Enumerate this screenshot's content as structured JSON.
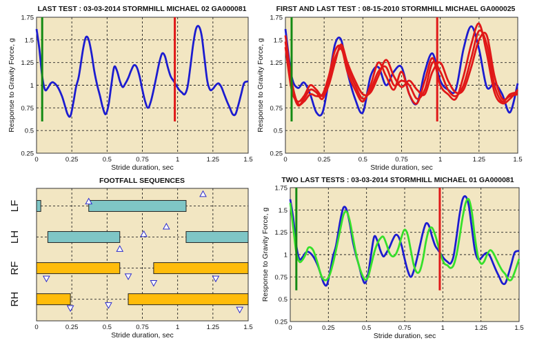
{
  "colors": {
    "panel_bg": "#f2e6c2",
    "blue": "#1c1cd0",
    "red": "#e01818",
    "green_marker": "#138a13",
    "bright_green": "#36e02a",
    "teal_bar": "#7fc6c6",
    "orange_bar": "#ffbc0a",
    "triangle": "#2a2acc"
  },
  "chart_data": [
    {
      "type": "line",
      "title": "LAST TEST : 03-03-2014 STORMHILL MICHAEL 02 GA000081",
      "xlabel": "Stride duration, sec",
      "ylabel": "Response to Gravity Force, g",
      "xlim": [
        0,
        1.5
      ],
      "ylim": [
        0.25,
        1.75
      ],
      "x_ticks": [
        "0",
        "0.25",
        "0.5",
        "0.75",
        "1",
        "1.25",
        "1.5"
      ],
      "y_ticks": [
        "0.25",
        "0.5",
        "0.75",
        "1",
        "1.25",
        "1.5",
        "1.75"
      ],
      "grid": true,
      "markers": [
        {
          "x": 0.04,
          "y_range": [
            0.6,
            1.75
          ],
          "color": "green"
        },
        {
          "x": 0.98,
          "y_range": [
            0.6,
            1.75
          ],
          "color": "red"
        }
      ],
      "series": [
        {
          "color": "blue",
          "x": [
            0,
            0.02,
            0.04,
            0.06,
            0.08,
            0.1,
            0.12,
            0.15,
            0.18,
            0.2,
            0.22,
            0.24,
            0.26,
            0.28,
            0.3,
            0.33,
            0.35,
            0.37,
            0.39,
            0.41,
            0.43,
            0.45,
            0.47,
            0.49,
            0.51,
            0.53,
            0.55,
            0.57,
            0.59,
            0.61,
            0.63,
            0.65,
            0.67,
            0.69,
            0.71,
            0.73,
            0.75,
            0.77,
            0.79,
            0.81,
            0.83,
            0.85,
            0.87,
            0.89,
            0.91,
            0.93,
            0.95,
            0.97,
            0.99,
            1.01,
            1.03,
            1.05,
            1.07,
            1.09,
            1.11,
            1.13,
            1.15,
            1.17,
            1.19,
            1.21,
            1.23,
            1.25,
            1.27,
            1.29,
            1.31,
            1.33,
            1.35,
            1.37,
            1.39,
            1.41,
            1.43,
            1.45,
            1.47,
            1.49,
            1.5
          ],
          "y": [
            1.62,
            1.4,
            1.1,
            0.95,
            0.97,
            1.02,
            1.03,
            0.98,
            0.88,
            0.78,
            0.68,
            0.66,
            0.8,
            0.98,
            1.1,
            1.4,
            1.53,
            1.5,
            1.35,
            1.15,
            1.0,
            0.88,
            0.75,
            0.68,
            0.78,
            1.0,
            1.2,
            1.16,
            1.05,
            0.98,
            1.02,
            1.08,
            1.16,
            1.22,
            1.2,
            1.1,
            0.95,
            0.82,
            0.75,
            0.82,
            0.95,
            1.1,
            1.25,
            1.35,
            1.32,
            1.2,
            1.1,
            1.05,
            1.0,
            0.95,
            0.92,
            0.9,
            0.98,
            1.2,
            1.45,
            1.62,
            1.65,
            1.55,
            1.3,
            1.05,
            0.95,
            0.96,
            1.0,
            1.02,
            0.98,
            0.9,
            0.82,
            0.75,
            0.68,
            0.68,
            0.78,
            0.9,
            1.02,
            1.04,
            1.04
          ]
        }
      ]
    },
    {
      "type": "line",
      "title": "FIRST AND LAST TEST : 08-15-2010 STORMHILL MICHAEL GA000025",
      "xlabel": "Stride duration, sec",
      "ylabel": "Response to Gravity Force, g",
      "xlim": [
        0,
        1.5
      ],
      "ylim": [
        0.25,
        1.75
      ],
      "x_ticks": [
        "0",
        "0.25",
        "0.5",
        "0.75",
        "1",
        "1.25",
        "1.5"
      ],
      "y_ticks": [
        "0.25",
        "0.5",
        "0.75",
        "1",
        "1.25",
        "1.5",
        "1.75"
      ],
      "grid": true,
      "markers": [
        {
          "x": 0.04,
          "y_range": [
            0.6,
            1.75
          ],
          "color": "green"
        },
        {
          "x": 0.98,
          "y_range": [
            0.6,
            1.75
          ],
          "color": "red"
        }
      ],
      "series": [
        {
          "color": "blue",
          "x": [
            0,
            0.04,
            0.08,
            0.12,
            0.16,
            0.2,
            0.24,
            0.28,
            0.32,
            0.36,
            0.4,
            0.45,
            0.5,
            0.55,
            0.6,
            0.65,
            0.7,
            0.75,
            0.8,
            0.85,
            0.9,
            0.95,
            1.0,
            1.05,
            1.1,
            1.15,
            1.2,
            1.25,
            1.3,
            1.35,
            1.4,
            1.45,
            1.5
          ],
          "y": [
            1.62,
            1.1,
            0.97,
            1.03,
            0.9,
            0.7,
            0.7,
            1.05,
            1.45,
            1.5,
            1.15,
            0.85,
            0.7,
            1.1,
            1.2,
            1.0,
            1.15,
            1.2,
            0.9,
            0.8,
            1.15,
            1.35,
            1.05,
            0.95,
            0.95,
            1.4,
            1.65,
            1.4,
            0.98,
            1.02,
            0.9,
            0.7,
            1.02
          ]
        },
        {
          "color": "red",
          "x": [
            0,
            0.04,
            0.08,
            0.12,
            0.16,
            0.2,
            0.24,
            0.28,
            0.32,
            0.36,
            0.4,
            0.45,
            0.5,
            0.55,
            0.6,
            0.65,
            0.7,
            0.75,
            0.8,
            0.85,
            0.9,
            0.95,
            1.0,
            1.05,
            1.1,
            1.15,
            1.2,
            1.25,
            1.3,
            1.35,
            1.4,
            1.45,
            1.5
          ],
          "y": [
            1.55,
            1.05,
            0.8,
            0.82,
            0.9,
            0.88,
            0.9,
            1.1,
            1.38,
            1.42,
            1.15,
            0.95,
            0.82,
            1.0,
            1.25,
            1.1,
            0.95,
            1.15,
            0.9,
            0.8,
            1.05,
            1.3,
            1.0,
            0.9,
            0.85,
            1.1,
            1.45,
            1.68,
            1.35,
            0.92,
            0.8,
            0.85,
            0.95
          ]
        },
        {
          "color": "red",
          "x": [
            0,
            0.04,
            0.08,
            0.12,
            0.16,
            0.2,
            0.24,
            0.28,
            0.32,
            0.36,
            0.4,
            0.45,
            0.5,
            0.55,
            0.6,
            0.65,
            0.7,
            0.75,
            0.8,
            0.85,
            0.9,
            0.95,
            1.0,
            1.05,
            1.1,
            1.15,
            1.2,
            1.25,
            1.3,
            1.35,
            1.4,
            1.45,
            1.5
          ],
          "y": [
            1.48,
            1.0,
            0.78,
            0.85,
            0.95,
            0.92,
            0.85,
            1.05,
            1.3,
            1.4,
            1.2,
            1.0,
            0.85,
            0.95,
            1.15,
            1.2,
            1.0,
            1.05,
            1.0,
            0.85,
            0.95,
            1.25,
            1.15,
            0.95,
            0.88,
            1.0,
            1.3,
            1.6,
            1.45,
            1.0,
            0.82,
            0.9,
            0.92
          ]
        },
        {
          "color": "red",
          "x": [
            0,
            0.04,
            0.08,
            0.12,
            0.16,
            0.2,
            0.24,
            0.28,
            0.32,
            0.36,
            0.4,
            0.45,
            0.5,
            0.55,
            0.6,
            0.65,
            0.7,
            0.75,
            0.8,
            0.85,
            0.9,
            0.95,
            1.0,
            1.05,
            1.1,
            1.15,
            1.2,
            1.25,
            1.3,
            1.35,
            1.4,
            1.45,
            1.5
          ],
          "y": [
            1.42,
            0.95,
            0.82,
            0.88,
            1.0,
            0.95,
            0.88,
            1.0,
            1.25,
            1.45,
            1.25,
            1.05,
            0.9,
            0.92,
            1.1,
            1.28,
            1.1,
            0.98,
            1.05,
            0.95,
            0.9,
            1.15,
            1.25,
            1.05,
            0.92,
            0.95,
            1.2,
            1.5,
            1.55,
            1.1,
            0.85,
            0.88,
            0.9
          ]
        }
      ]
    },
    {
      "type": "gantt",
      "title": "FOOTFALL SEQUENCES",
      "xlabel": "Stride duration, sec",
      "xlim": [
        0,
        1.5
      ],
      "x_ticks": [
        "0",
        "0.25",
        "0.5",
        "0.75",
        "1",
        "1.25",
        "1.5"
      ],
      "lanes": [
        "LF",
        "LH",
        "RF",
        "RH"
      ],
      "grid": true,
      "bars": [
        {
          "lane": 0,
          "start": 0.0,
          "end": 0.03,
          "color": "teal"
        },
        {
          "lane": 0,
          "start": 0.37,
          "end": 1.06,
          "color": "teal"
        },
        {
          "lane": 1,
          "start": 0.08,
          "end": 0.59,
          "color": "teal"
        },
        {
          "lane": 1,
          "start": 1.06,
          "end": 1.5,
          "color": "teal"
        },
        {
          "lane": 2,
          "start": 0.0,
          "end": 0.59,
          "color": "orange"
        },
        {
          "lane": 2,
          "start": 0.83,
          "end": 1.5,
          "color": "orange"
        },
        {
          "lane": 3,
          "start": 0.0,
          "end": 0.24,
          "color": "orange"
        },
        {
          "lane": 3,
          "start": 0.65,
          "end": 1.5,
          "color": "orange"
        }
      ],
      "triangles": [
        {
          "x": 0.37,
          "lane": 0,
          "offset": -0.3,
          "dir": "up"
        },
        {
          "x": 1.18,
          "lane": 0,
          "offset": -0.8,
          "dir": "up"
        },
        {
          "x": 0.59,
          "lane": 1,
          "offset": 0.8,
          "dir": "up"
        },
        {
          "x": 0.76,
          "lane": 1,
          "offset": -0.2,
          "dir": "up"
        },
        {
          "x": 0.92,
          "lane": 1,
          "offset": -0.7,
          "dir": "up"
        },
        {
          "x": 0.07,
          "lane": 2,
          "offset": 0.7,
          "dir": "down"
        },
        {
          "x": 0.65,
          "lane": 2,
          "offset": 0.55,
          "dir": "down"
        },
        {
          "x": 0.83,
          "lane": 2,
          "offset": 1.0,
          "dir": "down"
        },
        {
          "x": 1.27,
          "lane": 2,
          "offset": 0.7,
          "dir": "down"
        },
        {
          "x": 0.24,
          "lane": 3,
          "offset": 0.6,
          "dir": "down"
        },
        {
          "x": 0.51,
          "lane": 3,
          "offset": 0.4,
          "dir": "down"
        },
        {
          "x": 1.44,
          "lane": 3,
          "offset": 0.7,
          "dir": "down"
        }
      ]
    },
    {
      "type": "line",
      "title": "TWO LAST TESTS : 03-03-2014 STORMHILL MICHAEL 01 GA000081",
      "xlabel": "Stride duration, sec",
      "ylabel": "Response to Gravity Force, g",
      "xlim": [
        0,
        1.5
      ],
      "ylim": [
        0.25,
        1.75
      ],
      "x_ticks": [
        "0",
        "0.25",
        "0.5",
        "0.75",
        "1",
        "1.25",
        "1.5"
      ],
      "y_ticks": [
        "0.25",
        "0.5",
        "0.75",
        "1",
        "1.25",
        "1.5",
        "1.75"
      ],
      "grid": true,
      "markers": [
        {
          "x": 0.04,
          "y_range": [
            0.6,
            1.75
          ],
          "color": "green"
        },
        {
          "x": 0.98,
          "y_range": [
            0.6,
            1.75
          ],
          "color": "red"
        }
      ],
      "series": [
        {
          "color": "blue",
          "x": [
            0,
            0.02,
            0.04,
            0.06,
            0.08,
            0.1,
            0.12,
            0.15,
            0.18,
            0.2,
            0.22,
            0.24,
            0.26,
            0.28,
            0.3,
            0.33,
            0.35,
            0.37,
            0.39,
            0.41,
            0.43,
            0.45,
            0.47,
            0.49,
            0.51,
            0.53,
            0.55,
            0.57,
            0.59,
            0.61,
            0.63,
            0.65,
            0.67,
            0.69,
            0.71,
            0.73,
            0.75,
            0.77,
            0.79,
            0.81,
            0.83,
            0.85,
            0.87,
            0.89,
            0.91,
            0.93,
            0.95,
            0.97,
            0.99,
            1.01,
            1.03,
            1.05,
            1.07,
            1.09,
            1.11,
            1.13,
            1.15,
            1.17,
            1.19,
            1.21,
            1.23,
            1.25,
            1.27,
            1.29,
            1.31,
            1.33,
            1.35,
            1.37,
            1.39,
            1.41,
            1.43,
            1.45,
            1.47,
            1.49,
            1.5
          ],
          "y": [
            1.62,
            1.4,
            1.1,
            0.95,
            0.97,
            1.02,
            1.03,
            0.98,
            0.88,
            0.78,
            0.68,
            0.66,
            0.8,
            0.98,
            1.1,
            1.4,
            1.53,
            1.5,
            1.35,
            1.15,
            1.0,
            0.88,
            0.75,
            0.68,
            0.78,
            1.0,
            1.2,
            1.16,
            1.05,
            0.98,
            1.02,
            1.08,
            1.16,
            1.22,
            1.2,
            1.1,
            0.95,
            0.82,
            0.75,
            0.82,
            0.95,
            1.1,
            1.25,
            1.35,
            1.32,
            1.2,
            1.1,
            1.05,
            1.0,
            0.95,
            0.92,
            0.9,
            0.98,
            1.2,
            1.45,
            1.62,
            1.65,
            1.55,
            1.3,
            1.05,
            0.95,
            0.96,
            1.0,
            1.02,
            0.98,
            0.9,
            0.82,
            0.75,
            0.68,
            0.68,
            0.78,
            0.9,
            1.02,
            1.04,
            1.04
          ]
        },
        {
          "color": "bright_green",
          "x": [
            0,
            0.02,
            0.04,
            0.06,
            0.08,
            0.1,
            0.12,
            0.15,
            0.18,
            0.2,
            0.22,
            0.24,
            0.26,
            0.28,
            0.3,
            0.33,
            0.35,
            0.37,
            0.39,
            0.41,
            0.43,
            0.45,
            0.47,
            0.49,
            0.51,
            0.53,
            0.55,
            0.57,
            0.59,
            0.61,
            0.63,
            0.65,
            0.67,
            0.69,
            0.71,
            0.73,
            0.75,
            0.77,
            0.79,
            0.81,
            0.83,
            0.85,
            0.87,
            0.89,
            0.91,
            0.93,
            0.95,
            0.97,
            0.99,
            1.01,
            1.03,
            1.05,
            1.07,
            1.09,
            1.11,
            1.13,
            1.15,
            1.17,
            1.19,
            1.21,
            1.23,
            1.25,
            1.27,
            1.29,
            1.31,
            1.33,
            1.35,
            1.37,
            1.39,
            1.41,
            1.43,
            1.45,
            1.47,
            1.49,
            1.5
          ],
          "y": [
            1.58,
            1.3,
            1.02,
            0.92,
            0.94,
            1.0,
            1.08,
            1.05,
            0.9,
            0.78,
            0.72,
            0.72,
            0.78,
            0.9,
            1.05,
            1.3,
            1.45,
            1.48,
            1.38,
            1.2,
            1.02,
            0.88,
            0.78,
            0.72,
            0.75,
            0.88,
            1.02,
            1.12,
            1.18,
            1.2,
            1.12,
            1.02,
            0.98,
            1.0,
            1.08,
            1.2,
            1.28,
            1.22,
            1.05,
            0.88,
            0.8,
            0.82,
            0.95,
            1.15,
            1.28,
            1.3,
            1.22,
            1.1,
            0.98,
            0.9,
            0.88,
            0.85,
            0.88,
            1.0,
            1.2,
            1.42,
            1.58,
            1.62,
            1.48,
            1.2,
            0.98,
            0.9,
            0.92,
            1.0,
            1.05,
            1.02,
            0.95,
            0.88,
            0.82,
            0.78,
            0.72,
            0.72,
            0.8,
            0.9,
            0.95
          ]
        }
      ]
    }
  ]
}
